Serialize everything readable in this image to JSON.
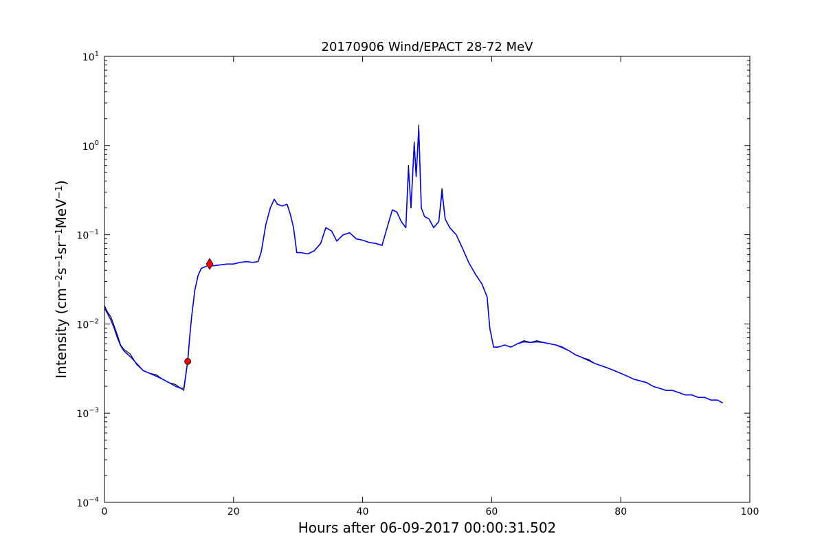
{
  "chart_data": {
    "type": "line",
    "title": "20170906 Wind/EPACT 28-72 MeV",
    "xlabel": "Hours after 06-09-2017 00:00:31.502",
    "ylabel_main": "Intensity (cm",
    "ylabel_parts": [
      "Intensity (cm",
      "−2",
      "s",
      "−1",
      "sr",
      "−1",
      "MeV",
      "−1",
      ")"
    ],
    "xlim": [
      0,
      100
    ],
    "ylim": [
      0.0001,
      10
    ],
    "yscale": "log",
    "grid": false,
    "x_ticks": [
      0,
      20,
      40,
      60,
      80,
      100
    ],
    "x_tick_labels": [
      "0",
      "20",
      "40",
      "60",
      "80",
      "100"
    ],
    "y_ticks": [
      0.0001,
      0.001,
      0.01,
      0.1,
      1,
      10
    ],
    "y_tick_base": "10",
    "y_tick_exponents": [
      "−4",
      "−3",
      "−2",
      "−1",
      "0",
      "1"
    ],
    "colors": {
      "raw": "#000000",
      "smoothed": "#0000ff",
      "marker": "#ff0000"
    },
    "series": [
      {
        "style": "raw-black",
        "points": [
          [
            0,
            0.016
          ],
          [
            0.5,
            0.0135
          ],
          [
            1,
            0.012
          ],
          [
            1.5,
            0.0095
          ],
          [
            2,
            0.0075
          ],
          [
            2.5,
            0.0058
          ],
          [
            3,
            0.0052
          ],
          [
            4,
            0.0046
          ],
          [
            5,
            0.0035
          ],
          [
            6,
            0.003
          ],
          [
            7,
            0.0028
          ],
          [
            8,
            0.0027
          ],
          [
            9,
            0.0024
          ],
          [
            10,
            0.0022
          ],
          [
            11,
            0.0021
          ],
          [
            11.8,
            0.0019
          ],
          [
            12.3,
            0.0018
          ],
          [
            12.9,
            0.0038
          ],
          [
            13.2,
            0.007
          ],
          [
            13.5,
            0.012
          ],
          [
            14,
            0.024
          ],
          [
            14.5,
            0.035
          ],
          [
            15,
            0.042
          ],
          [
            16,
            0.045
          ],
          [
            17,
            0.045
          ],
          [
            18,
            0.046
          ],
          [
            19,
            0.047
          ],
          [
            20,
            0.047
          ],
          [
            21,
            0.049
          ],
          [
            22,
            0.05
          ],
          [
            23,
            0.049
          ],
          [
            23.8,
            0.05
          ],
          [
            24.3,
            0.065
          ],
          [
            25,
            0.13
          ],
          [
            25.7,
            0.2
          ],
          [
            26.3,
            0.25
          ],
          [
            26.8,
            0.22
          ],
          [
            27.5,
            0.21
          ],
          [
            28.3,
            0.22
          ],
          [
            28.8,
            0.17
          ],
          [
            29.3,
            0.12
          ],
          [
            29.8,
            0.063
          ],
          [
            30.5,
            0.063
          ],
          [
            31.5,
            0.061
          ],
          [
            32.5,
            0.066
          ],
          [
            33.5,
            0.08
          ],
          [
            34.3,
            0.12
          ],
          [
            35.2,
            0.11
          ],
          [
            36,
            0.085
          ],
          [
            37,
            0.1
          ],
          [
            38,
            0.105
          ],
          [
            39,
            0.09
          ],
          [
            40,
            0.087
          ],
          [
            41,
            0.082
          ],
          [
            42,
            0.08
          ],
          [
            43,
            0.076
          ],
          [
            43.8,
            0.12
          ],
          [
            44.6,
            0.19
          ],
          [
            45.3,
            0.18
          ],
          [
            46,
            0.14
          ],
          [
            46.7,
            0.12
          ],
          [
            47.1,
            0.6
          ],
          [
            47.5,
            0.2
          ],
          [
            48,
            1.1
          ],
          [
            48.3,
            0.45
          ],
          [
            48.7,
            1.7
          ],
          [
            49.1,
            0.2
          ],
          [
            49.6,
            0.16
          ],
          [
            50.3,
            0.15
          ],
          [
            51,
            0.12
          ],
          [
            51.8,
            0.14
          ],
          [
            52.3,
            0.33
          ],
          [
            52.8,
            0.15
          ],
          [
            53.5,
            0.12
          ],
          [
            54.5,
            0.1
          ],
          [
            55.5,
            0.07
          ],
          [
            56.5,
            0.048
          ],
          [
            57.5,
            0.036
          ],
          [
            58.5,
            0.028
          ],
          [
            59.3,
            0.02
          ],
          [
            59.7,
            0.009
          ],
          [
            60.3,
            0.0055
          ],
          [
            61,
            0.0055
          ],
          [
            62,
            0.0058
          ],
          [
            63,
            0.0055
          ],
          [
            64,
            0.006
          ],
          [
            65,
            0.0065
          ],
          [
            66,
            0.0062
          ],
          [
            67,
            0.0065
          ],
          [
            68,
            0.0062
          ],
          [
            69,
            0.006
          ],
          [
            70,
            0.0058
          ],
          [
            71,
            0.0055
          ],
          [
            72,
            0.005
          ],
          [
            73,
            0.0045
          ],
          [
            74,
            0.0042
          ],
          [
            75,
            0.004
          ],
          [
            76,
            0.0036
          ],
          [
            77,
            0.0034
          ],
          [
            78,
            0.0032
          ],
          [
            79,
            0.003
          ],
          [
            80,
            0.0028
          ],
          [
            81,
            0.0026
          ],
          [
            82,
            0.0024
          ],
          [
            83,
            0.0023
          ],
          [
            84,
            0.0022
          ],
          [
            85,
            0.002
          ],
          [
            86,
            0.0019
          ],
          [
            87,
            0.0018
          ],
          [
            88,
            0.0018
          ],
          [
            89,
            0.0017
          ],
          [
            90,
            0.0016
          ],
          [
            91,
            0.0016
          ],
          [
            92,
            0.0015
          ],
          [
            93,
            0.0015
          ],
          [
            94,
            0.0014
          ],
          [
            95,
            0.0014
          ],
          [
            95.8,
            0.0013
          ]
        ]
      },
      {
        "style": "smoothed-blue",
        "points": [
          [
            0,
            0.015
          ],
          [
            0.5,
            0.013
          ],
          [
            1,
            0.011
          ],
          [
            1.5,
            0.009
          ],
          [
            2,
            0.007
          ],
          [
            2.5,
            0.0057
          ],
          [
            3,
            0.005
          ],
          [
            4,
            0.0043
          ],
          [
            5,
            0.0036
          ],
          [
            6,
            0.003
          ],
          [
            7,
            0.0028
          ],
          [
            8,
            0.0026
          ],
          [
            9,
            0.0024
          ],
          [
            10,
            0.0022
          ],
          [
            11,
            0.002
          ],
          [
            11.8,
            0.0019
          ],
          [
            12.3,
            0.0019
          ],
          [
            12.9,
            0.0038
          ],
          [
            13.2,
            0.007
          ],
          [
            13.5,
            0.012
          ],
          [
            14,
            0.024
          ],
          [
            14.5,
            0.035
          ],
          [
            15,
            0.042
          ],
          [
            16,
            0.045
          ],
          [
            17,
            0.045
          ],
          [
            18,
            0.046
          ],
          [
            19,
            0.047
          ],
          [
            20,
            0.047
          ],
          [
            21,
            0.049
          ],
          [
            22,
            0.05
          ],
          [
            23,
            0.049
          ],
          [
            23.8,
            0.05
          ],
          [
            24.3,
            0.065
          ],
          [
            25,
            0.13
          ],
          [
            25.7,
            0.2
          ],
          [
            26.3,
            0.25
          ],
          [
            26.8,
            0.22
          ],
          [
            27.5,
            0.21
          ],
          [
            28.3,
            0.22
          ],
          [
            28.8,
            0.17
          ],
          [
            29.3,
            0.12
          ],
          [
            29.8,
            0.063
          ],
          [
            30.5,
            0.063
          ],
          [
            31.5,
            0.061
          ],
          [
            32.5,
            0.066
          ],
          [
            33.5,
            0.08
          ],
          [
            34.3,
            0.12
          ],
          [
            35.2,
            0.11
          ],
          [
            36,
            0.085
          ],
          [
            37,
            0.1
          ],
          [
            38,
            0.105
          ],
          [
            39,
            0.09
          ],
          [
            40,
            0.087
          ],
          [
            41,
            0.082
          ],
          [
            42,
            0.08
          ],
          [
            43,
            0.076
          ],
          [
            43.8,
            0.12
          ],
          [
            44.6,
            0.19
          ],
          [
            45.3,
            0.18
          ],
          [
            46,
            0.14
          ],
          [
            46.7,
            0.12
          ],
          [
            47.1,
            0.55
          ],
          [
            47.5,
            0.2
          ],
          [
            48,
            1.05
          ],
          [
            48.3,
            0.45
          ],
          [
            48.7,
            1.5
          ],
          [
            49.1,
            0.2
          ],
          [
            49.6,
            0.16
          ],
          [
            50.3,
            0.15
          ],
          [
            51,
            0.12
          ],
          [
            51.8,
            0.14
          ],
          [
            52.3,
            0.3
          ],
          [
            52.8,
            0.15
          ],
          [
            53.5,
            0.12
          ],
          [
            54.5,
            0.1
          ],
          [
            55.5,
            0.07
          ],
          [
            56.5,
            0.048
          ],
          [
            57.5,
            0.036
          ],
          [
            58.5,
            0.028
          ],
          [
            59.3,
            0.02
          ],
          [
            59.7,
            0.009
          ],
          [
            60.3,
            0.0055
          ],
          [
            61,
            0.0055
          ],
          [
            62,
            0.0058
          ],
          [
            63,
            0.0055
          ],
          [
            64,
            0.006
          ],
          [
            65,
            0.0063
          ],
          [
            66,
            0.0062
          ],
          [
            67,
            0.0063
          ],
          [
            68,
            0.0062
          ],
          [
            69,
            0.006
          ],
          [
            70,
            0.0058
          ],
          [
            71,
            0.0054
          ],
          [
            72,
            0.005
          ],
          [
            73,
            0.0045
          ],
          [
            74,
            0.0042
          ],
          [
            75,
            0.0039
          ],
          [
            76,
            0.0036
          ],
          [
            77,
            0.0034
          ],
          [
            78,
            0.0032
          ],
          [
            79,
            0.003
          ],
          [
            80,
            0.0028
          ],
          [
            81,
            0.0026
          ],
          [
            82,
            0.0024
          ],
          [
            83,
            0.0023
          ],
          [
            84,
            0.0022
          ],
          [
            85,
            0.002
          ],
          [
            86,
            0.0019
          ],
          [
            87,
            0.0018
          ],
          [
            88,
            0.0018
          ],
          [
            89,
            0.0017
          ],
          [
            90,
            0.0016
          ],
          [
            91,
            0.0016
          ],
          [
            92,
            0.0015
          ],
          [
            93,
            0.0015
          ],
          [
            94,
            0.0014
          ],
          [
            95,
            0.0014
          ],
          [
            95.8,
            0.0013
          ]
        ]
      }
    ],
    "markers": [
      {
        "shape": "circle",
        "x": 12.9,
        "y": 0.0038
      },
      {
        "shape": "diamond",
        "x": 16.3,
        "y": 0.047
      }
    ]
  }
}
